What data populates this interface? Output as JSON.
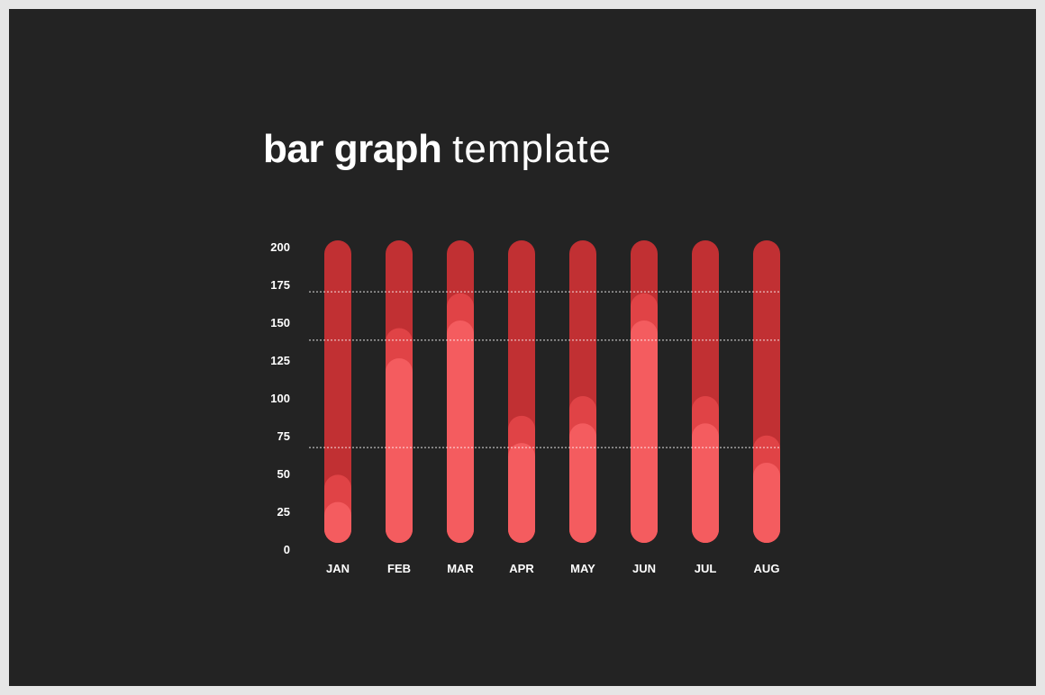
{
  "title": {
    "bold": "bar graph",
    "light": "template"
  },
  "colors": {
    "background": "#232323",
    "frame": "#e6e6e6",
    "track": "#c13033",
    "middle": "#e04346",
    "front": "#f45c5f",
    "text": "#ffffff"
  },
  "chart_data": {
    "type": "bar",
    "categories": [
      "JAN",
      "FEB",
      "MAR",
      "APR",
      "MAY",
      "JUN",
      "JUL",
      "AUG"
    ],
    "series": [
      {
        "values": [
          200,
          200,
          200,
          200,
          200,
          200,
          200,
          200
        ]
      },
      {
        "values": [
          45,
          142,
          165,
          84,
          97,
          165,
          97,
          71
        ]
      },
      {
        "values": [
          27,
          122,
          147,
          66,
          79,
          147,
          79,
          53
        ]
      }
    ],
    "y_ticks": [
      "200",
      "175",
      "150",
      "125",
      "100",
      "75",
      "50",
      "25",
      "0"
    ],
    "ylim": [
      0,
      200
    ],
    "reference_lines": [
      166,
      134,
      63
    ],
    "grid": false
  }
}
